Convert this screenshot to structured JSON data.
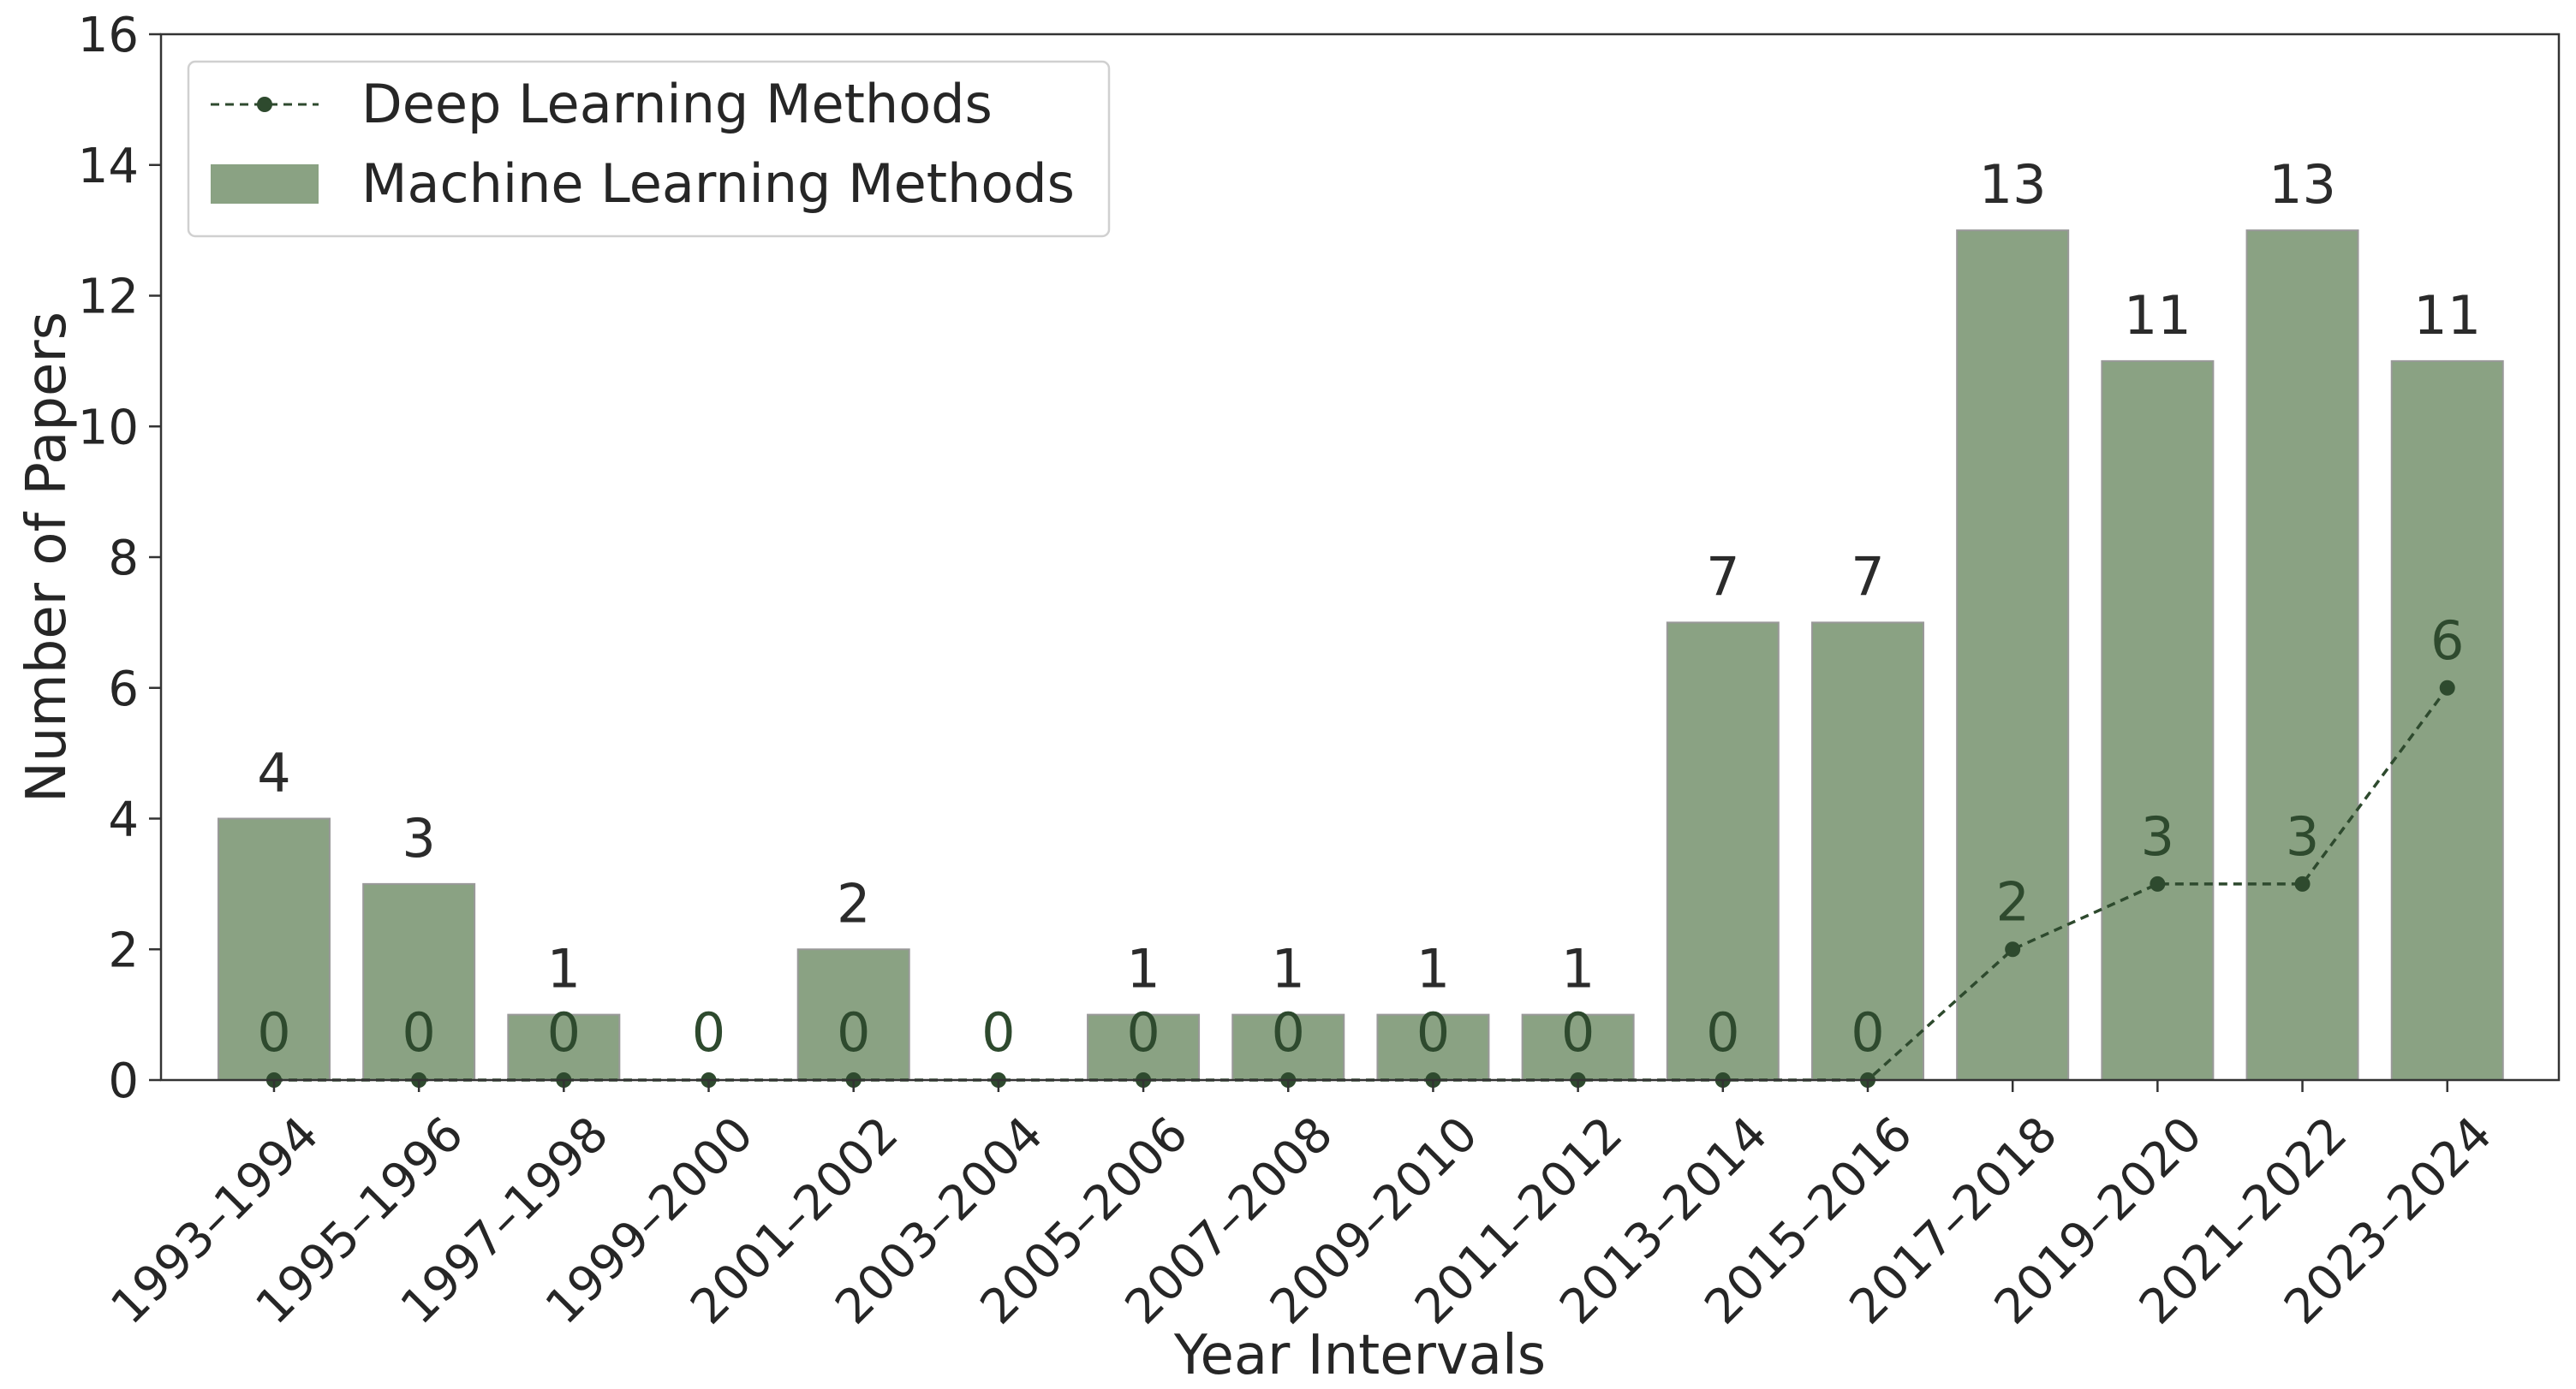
{
  "chart_data": {
    "type": "bar",
    "title": "",
    "xlabel": "Year Intervals",
    "ylabel": "Number of Papers",
    "ylim": [
      0,
      16
    ],
    "yticks": [
      0,
      2,
      4,
      6,
      8,
      10,
      12,
      14,
      16
    ],
    "grid": false,
    "legend_position": "top-left",
    "categories": [
      "1993–1994",
      "1995–1996",
      "1997–1998",
      "1999–2000",
      "2001–2002",
      "2003–2004",
      "2005–2006",
      "2007–2008",
      "2009–2010",
      "2011–2012",
      "2013–2014",
      "2015–2016",
      "2017–2018",
      "2019–2020",
      "2021–2022",
      "2023–2024"
    ],
    "series": [
      {
        "name": "Machine Learning Methods",
        "kind": "bar",
        "color": "#8aa283",
        "values": [
          4,
          3,
          1,
          0,
          2,
          0,
          1,
          1,
          1,
          1,
          7,
          7,
          13,
          11,
          13,
          11
        ],
        "labels": [
          "4",
          "3",
          "1",
          "",
          "2",
          "",
          "1",
          "1",
          "1",
          "1",
          "7",
          "7",
          "13",
          "11",
          "13",
          "11"
        ]
      },
      {
        "name": "Deep Learning Methods",
        "kind": "line",
        "style": "dashed",
        "color": "#2e4a2e",
        "values": [
          0,
          0,
          0,
          0,
          0,
          0,
          0,
          0,
          0,
          0,
          0,
          0,
          2,
          3,
          3,
          6
        ],
        "labels": [
          "0",
          "0",
          "0",
          "0",
          "0",
          "0",
          "0",
          "0",
          "0",
          "0",
          "0",
          "0",
          "2",
          "3",
          "3",
          "6"
        ]
      }
    ]
  }
}
